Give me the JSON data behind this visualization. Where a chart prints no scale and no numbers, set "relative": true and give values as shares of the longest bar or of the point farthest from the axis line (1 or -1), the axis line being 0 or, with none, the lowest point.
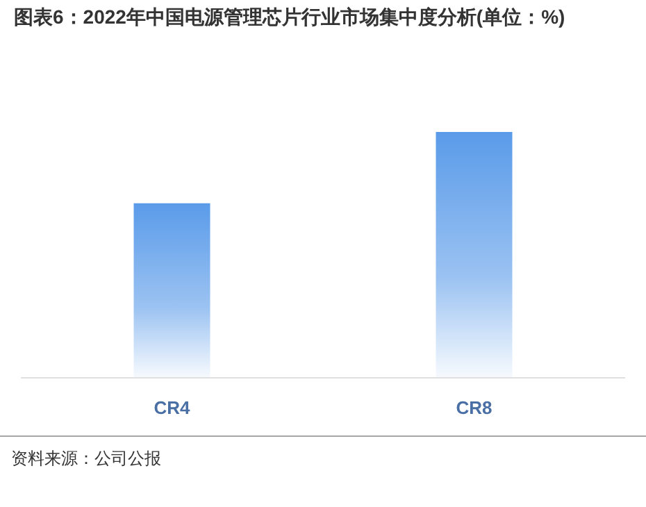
{
  "chart_data": {
    "type": "bar",
    "title": "图表6：2022年中国电源管理芯片行业市场集中度分析(单位：%)",
    "categories": [
      "CR4",
      "CR8"
    ],
    "values": [
      0.71,
      1
    ],
    "relative": true,
    "color": "#5a9be9",
    "annotations": [
      "资料来源：公司公报"
    ]
  }
}
